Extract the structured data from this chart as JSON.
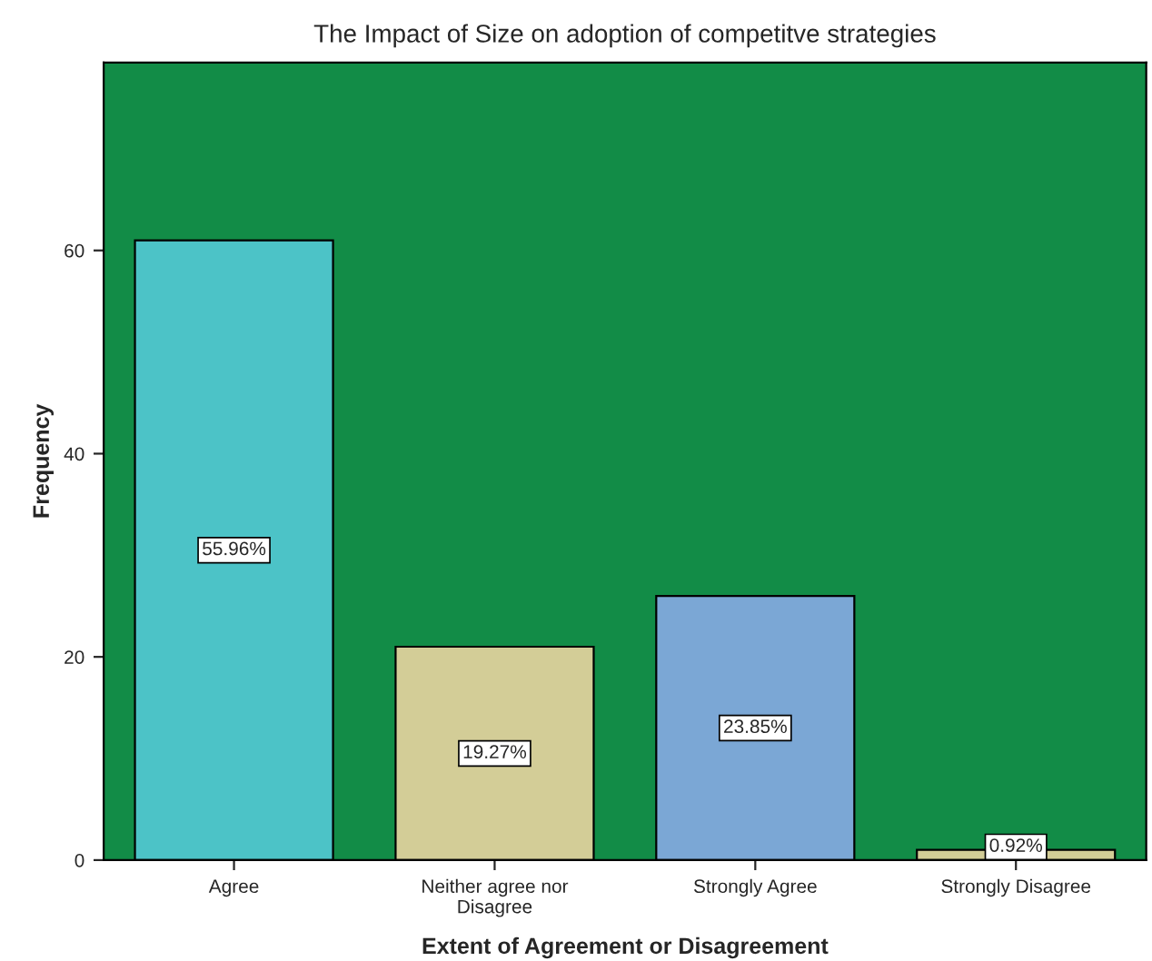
{
  "chart_data": {
    "type": "bar",
    "title": "The Impact of Size on adoption of competitve strategies",
    "xlabel": "Extent of Agreement or Disagreement",
    "ylabel": "Frequency",
    "categories": [
      "Agree",
      "Neither agree nor\nDisagree",
      "Strongly Agree",
      "Strongly Disagree"
    ],
    "values": [
      61,
      21,
      26,
      1
    ],
    "colors": [
      "#4cc3c7",
      "#d3cd97",
      "#7ba7d5",
      "#d3cd97"
    ],
    "annotations": [
      {
        "text": "55.96%",
        "x": "Agree",
        "y": 30.5
      },
      {
        "text": "19.27%",
        "x": "Neither agree nor\nDisagree",
        "y": 10.5
      },
      {
        "text": "23.85%",
        "x": "Strongly Agree",
        "y": 13
      },
      {
        "text": "0.92%",
        "x": "Strongly Disagree",
        "y": 1.3
      }
    ],
    "ylim": [
      0,
      78.5
    ],
    "yticks": [
      0,
      20,
      40,
      60
    ],
    "grid": false
  }
}
